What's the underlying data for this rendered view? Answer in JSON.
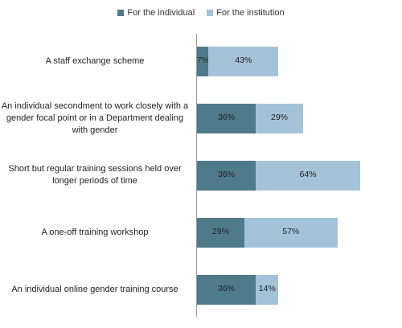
{
  "chart_data": {
    "type": "bar",
    "orientation": "horizontal",
    "stacked": true,
    "categories": [
      "A staff exchange scheme",
      "An individual secondment to work closely with a gender focal point or in a Department dealing with gender",
      "Short but regular training sessions held over longer periods of time",
      "A one-off training workshop",
      "An individual online gender training course"
    ],
    "series": [
      {
        "name": "For the individual",
        "values": [
          7,
          36,
          36,
          29,
          36
        ],
        "color": "#4e7a8a"
      },
      {
        "name": "For the institution",
        "values": [
          43,
          29,
          64,
          57,
          14
        ],
        "color": "#a4c3d8"
      }
    ],
    "value_suffix": "%",
    "xlim": [
      0,
      100
    ],
    "grid": false,
    "legend_position": "top"
  }
}
